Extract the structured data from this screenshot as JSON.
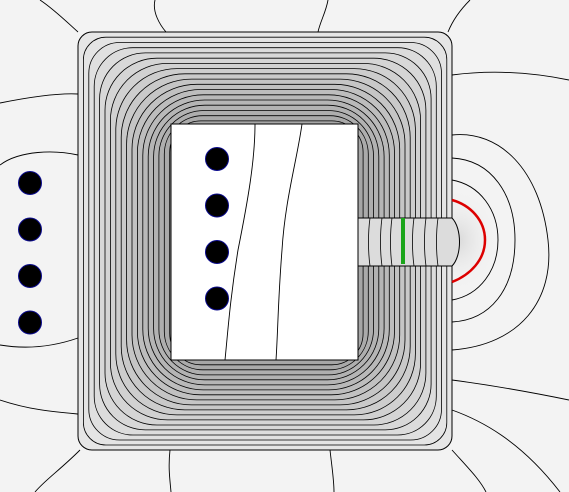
{
  "colors": {
    "background": "#f3f3f3",
    "air_light": "#ededed",
    "core_light": "#e6e6e6",
    "core_dark": "#b9b9b9",
    "contour": "#000000",
    "window": "#ffffff",
    "conductor_fill": "#000000",
    "conductor_outline": "#0a0a8c",
    "gap_marker": "#1aa51a",
    "fringe_path": "#dd0000"
  },
  "conductors": {
    "outer_column": 4,
    "inner_column": 4
  },
  "core": {
    "contour_levels": 17
  }
}
